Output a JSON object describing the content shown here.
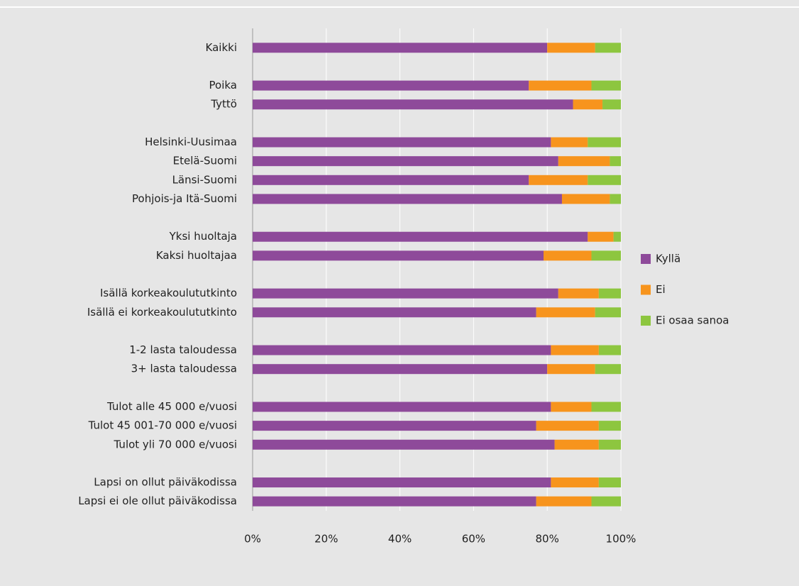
{
  "chart_data": {
    "type": "bar",
    "orientation": "horizontal",
    "stacked": true,
    "categories": [
      "Kaikki",
      null,
      "Poika",
      "Tyttö",
      null,
      "Helsinki-Uusimaa",
      "Etelä-Suomi",
      "Länsi-Suomi",
      "Pohjois-ja Itä-Suomi",
      null,
      "Yksi huoltaja",
      "Kaksi huoltajaa",
      null,
      "Isällä korkeakoulututkinto",
      "Isällä ei korkeakoulututkinto",
      null,
      "1-2 lasta taloudessa",
      "3+ lasta taloudessa",
      null,
      "Tulot alle 45 000 e/vuosi",
      "Tulot 45 001-70 000 e/vuosi",
      "Tulot yli 70 000 e/vuosi",
      null,
      "Lapsi on ollut päiväkodissa",
      "Lapsi ei ole ollut päiväkodissa"
    ],
    "series": [
      {
        "name": "Kyllä",
        "color": "#8e4a9a",
        "values": [
          80,
          null,
          75,
          87,
          null,
          81,
          83,
          75,
          84,
          null,
          91,
          79,
          null,
          83,
          77,
          null,
          81,
          80,
          null,
          81,
          77,
          82,
          null,
          81,
          77
        ]
      },
      {
        "name": "Ei",
        "color": "#f7941d",
        "values": [
          13,
          null,
          17,
          8,
          null,
          10,
          14,
          16,
          13,
          null,
          7,
          13,
          null,
          11,
          16,
          null,
          13,
          13,
          null,
          11,
          17,
          12,
          null,
          13,
          15
        ]
      },
      {
        "name": "Ei osaa sanoa",
        "color": "#8dc63f",
        "values": [
          7,
          null,
          8,
          5,
          null,
          9,
          3,
          9,
          3,
          null,
          2,
          8,
          null,
          6,
          7,
          null,
          6,
          7,
          null,
          8,
          6,
          6,
          null,
          6,
          8
        ]
      }
    ],
    "xlim": [
      0,
      100
    ],
    "xticks": [
      {
        "value": 0,
        "label": "0%"
      },
      {
        "value": 20,
        "label": "20%"
      },
      {
        "value": 40,
        "label": "40%"
      },
      {
        "value": 60,
        "label": "60%"
      },
      {
        "value": 80,
        "label": "80%"
      },
      {
        "value": 100,
        "label": "100%"
      }
    ],
    "grid": true,
    "legend": "right"
  }
}
